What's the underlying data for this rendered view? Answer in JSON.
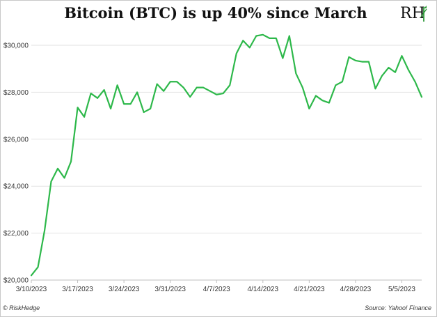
{
  "title": "Bitcoin (BTC) is up 40% since March",
  "logo_text": "RH",
  "footer": {
    "left": "© RiskHedge",
    "right": "Source: Yahoo! Finance"
  },
  "colors": {
    "line": "#2db84a",
    "grid": "#e2e2e2",
    "logo_green": "#2f9a3a"
  },
  "chart_data": {
    "type": "line",
    "title": "Bitcoin (BTC) is up 40% since March",
    "xlabel": "",
    "ylabel": "",
    "ylim": [
      20000,
      30000
    ],
    "grid": true,
    "y_ticks": [
      20000,
      22000,
      24000,
      26000,
      28000,
      30000
    ],
    "y_tick_labels": [
      "$20,000",
      "$22,000",
      "$24,000",
      "$26,000",
      "$28,000",
      "$30,000"
    ],
    "x_ticks": [
      "2023-03-10",
      "2023-03-17",
      "2023-03-24",
      "2023-03-31",
      "2023-04-07",
      "2023-04-14",
      "2023-04-21",
      "2023-04-28",
      "2023-05-05"
    ],
    "x_tick_labels": [
      "3/10/2023",
      "3/17/2023",
      "3/24/2023",
      "3/31/2023",
      "4/7/2023",
      "4/14/2023",
      "4/21/2023",
      "4/28/2023",
      "5/5/2023"
    ],
    "x": [
      "2023-03-10",
      "2023-03-11",
      "2023-03-12",
      "2023-03-13",
      "2023-03-14",
      "2023-03-15",
      "2023-03-16",
      "2023-03-17",
      "2023-03-18",
      "2023-03-19",
      "2023-03-20",
      "2023-03-21",
      "2023-03-22",
      "2023-03-23",
      "2023-03-24",
      "2023-03-25",
      "2023-03-26",
      "2023-03-27",
      "2023-03-28",
      "2023-03-29",
      "2023-03-30",
      "2023-03-31",
      "2023-04-01",
      "2023-04-02",
      "2023-04-03",
      "2023-04-04",
      "2023-04-05",
      "2023-04-06",
      "2023-04-07",
      "2023-04-08",
      "2023-04-09",
      "2023-04-10",
      "2023-04-11",
      "2023-04-12",
      "2023-04-13",
      "2023-04-14",
      "2023-04-15",
      "2023-04-16",
      "2023-04-17",
      "2023-04-18",
      "2023-04-19",
      "2023-04-20",
      "2023-04-21",
      "2023-04-22",
      "2023-04-23",
      "2023-04-24",
      "2023-04-25",
      "2023-04-26",
      "2023-04-27",
      "2023-04-28",
      "2023-04-29",
      "2023-04-30",
      "2023-05-01",
      "2023-05-02",
      "2023-05-03",
      "2023-05-04",
      "2023-05-05",
      "2023-05-06",
      "2023-05-07",
      "2023-05-08"
    ],
    "series": [
      {
        "values": [
          20200,
          20550,
          22100,
          24200,
          24750,
          24350,
          25050,
          27350,
          26950,
          27950,
          27750,
          28100,
          27300,
          28300,
          27500,
          27500,
          28000,
          27150,
          27300,
          28350,
          28050,
          28450,
          28450,
          28200,
          27800,
          28200,
          28200,
          28050,
          27900,
          27950,
          28300,
          29650,
          30200,
          29900,
          30400,
          30450,
          30300,
          30300,
          29450,
          30400,
          28800,
          28200,
          27300,
          27850,
          27650,
          27550,
          28300,
          28450,
          29500,
          29350,
          29300,
          29300,
          28150,
          28700,
          29050,
          28850,
          29550,
          28950,
          28450,
          27800
        ]
      }
    ]
  }
}
